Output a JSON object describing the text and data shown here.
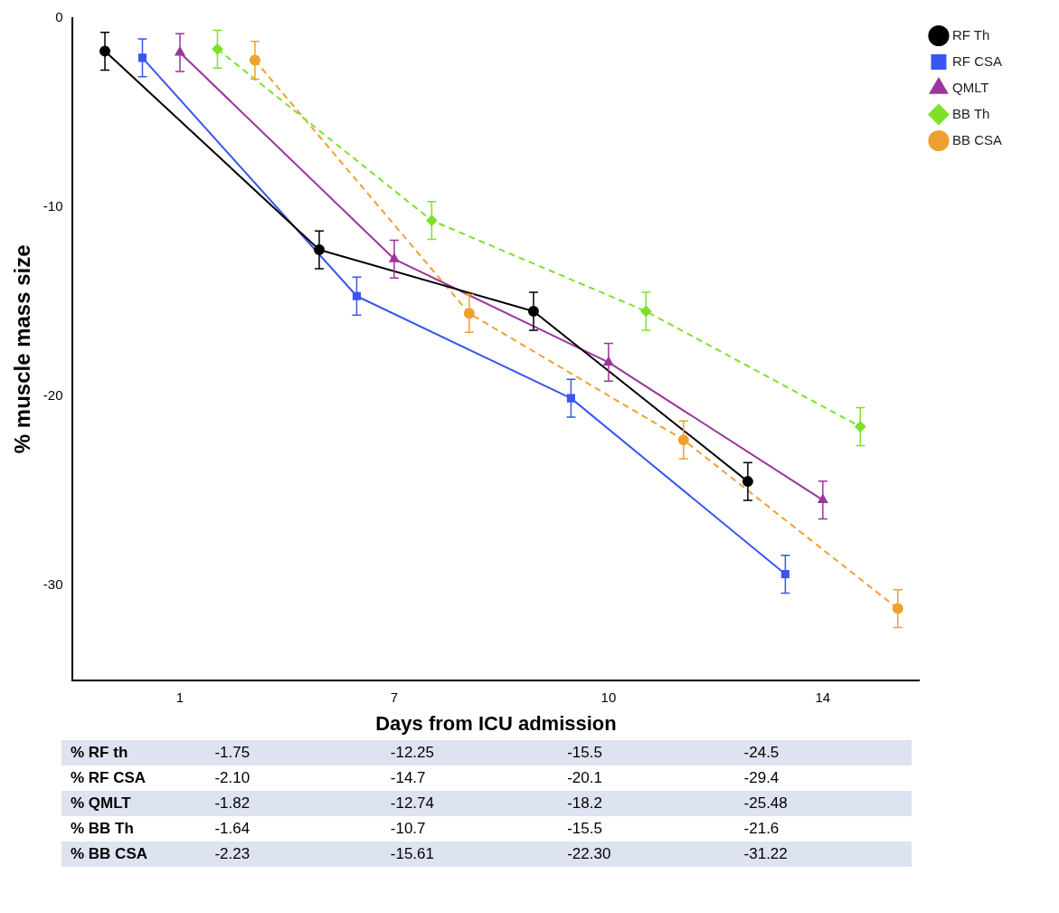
{
  "chart_data": {
    "type": "line",
    "xlabel": "Days from ICU admission",
    "ylabel": "% muscle mass size",
    "categories": [
      "1",
      "7",
      "10",
      "14"
    ],
    "ylim": [
      -35,
      0
    ],
    "yticks": [
      0,
      -10,
      -20,
      -30
    ],
    "grid": false,
    "legend": "top right",
    "series": [
      {
        "name": "RF Th",
        "color": "#000000",
        "marker": "circle",
        "line_style": "solid",
        "values": [
          -1.75,
          -12.25,
          -15.5,
          -24.5
        ],
        "errors": [
          1,
          1,
          1,
          1
        ],
        "value_labels": [
          "-1.75",
          "-12.25",
          "-15.5",
          "-24.5"
        ]
      },
      {
        "name": "RF CSA",
        "color": "#3a55f0",
        "marker": "square",
        "line_style": "solid",
        "values": [
          -2.1,
          -14.7,
          -20.1,
          -29.4
        ],
        "errors": [
          1,
          1,
          1,
          1
        ],
        "value_labels": [
          "-2.10",
          "-14.7",
          "-20.1",
          "-29.4"
        ]
      },
      {
        "name": "QMLT",
        "color": "#9b359c",
        "marker": "triangle",
        "line_style": "solid",
        "values": [
          -1.82,
          -12.74,
          -18.2,
          -25.48
        ],
        "errors": [
          1,
          1,
          1,
          1
        ],
        "value_labels": [
          "-1.82",
          "-12.74",
          "-18.2",
          "-25.48"
        ]
      },
      {
        "name": "BB Th",
        "color": "#7ee02a",
        "marker": "diamond",
        "line_style": "dashed",
        "values": [
          -1.64,
          -10.7,
          -15.5,
          -21.6
        ],
        "errors": [
          1,
          1,
          1,
          1
        ],
        "value_labels": [
          "-1.64",
          "-10.7",
          "-15.5",
          "-21.6"
        ]
      },
      {
        "name": "BB CSA",
        "color": "#f0a030",
        "marker": "circle",
        "line_style": "dashed",
        "values": [
          -2.23,
          -15.61,
          -22.3,
          -31.22
        ],
        "errors": [
          1,
          1,
          1,
          1
        ],
        "value_labels": [
          "-2.23",
          "-15.61",
          "-22.30",
          "-31.22"
        ]
      }
    ],
    "annotations": [
      "% RF th",
      "% RF CSA",
      "% QMLT",
      "% BB Th",
      "% BB CSA"
    ]
  }
}
